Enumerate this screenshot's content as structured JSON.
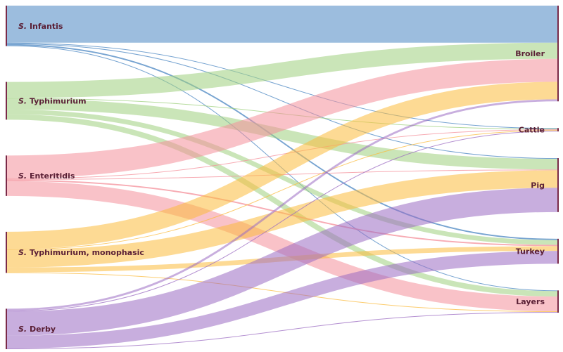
{
  "diagram": {
    "type": "sankey",
    "sources": [
      {
        "id": "infantis",
        "prefix": "S.",
        "label": "Infantis",
        "color": "#4a86c2"
      },
      {
        "id": "typhimurium",
        "prefix": "S.",
        "label": "Typhimurium",
        "color": "#9ed07d"
      },
      {
        "id": "enteritidis",
        "prefix": "S.",
        "label": "Enteritidis",
        "color": "#f48f9a"
      },
      {
        "id": "typh-mono",
        "prefix": "S.",
        "label": "Typhimurium, monophasic",
        "color": "#fbbb3d"
      },
      {
        "id": "derby",
        "prefix": "S.",
        "label": "Derby",
        "color": "#9b6bc2"
      }
    ],
    "targets": [
      {
        "id": "broiler",
        "label": "Broiler"
      },
      {
        "id": "cattle",
        "label": "Cattle"
      },
      {
        "id": "pig",
        "label": "Pig"
      },
      {
        "id": "turkey",
        "label": "Turkey"
      },
      {
        "id": "layers",
        "label": "Layers"
      }
    ],
    "flows": [
      {
        "source": "infantis",
        "target": "broiler",
        "value": 55
      },
      {
        "source": "infantis",
        "target": "cattle",
        "value": 1
      },
      {
        "source": "infantis",
        "target": "pig",
        "value": 1
      },
      {
        "source": "infantis",
        "target": "turkey",
        "value": 2
      },
      {
        "source": "infantis",
        "target": "layers",
        "value": 1
      },
      {
        "source": "typhimurium",
        "target": "broiler",
        "value": 24
      },
      {
        "source": "typhimurium",
        "target": "cattle",
        "value": 1
      },
      {
        "source": "typhimurium",
        "target": "pig",
        "value": 16
      },
      {
        "source": "typhimurium",
        "target": "turkey",
        "value": 7
      },
      {
        "source": "typhimurium",
        "target": "layers",
        "value": 8
      },
      {
        "source": "enteritidis",
        "target": "broiler",
        "value": 34
      },
      {
        "source": "enteritidis",
        "target": "cattle",
        "value": 1
      },
      {
        "source": "enteritidis",
        "target": "pig",
        "value": 1
      },
      {
        "source": "enteritidis",
        "target": "turkey",
        "value": 2
      },
      {
        "source": "enteritidis",
        "target": "layers",
        "value": 22
      },
      {
        "source": "typh-mono",
        "target": "broiler",
        "value": 26
      },
      {
        "source": "typh-mono",
        "target": "cattle",
        "value": 1
      },
      {
        "source": "typh-mono",
        "target": "pig",
        "value": 26
      },
      {
        "source": "typh-mono",
        "target": "turkey",
        "value": 7
      },
      {
        "source": "typh-mono",
        "target": "layers",
        "value": 1
      },
      {
        "source": "derby",
        "target": "broiler",
        "value": 3
      },
      {
        "source": "derby",
        "target": "cattle",
        "value": 1
      },
      {
        "source": "derby",
        "target": "pig",
        "value": 36
      },
      {
        "source": "derby",
        "target": "turkey",
        "value": 19
      },
      {
        "source": "derby",
        "target": "layers",
        "value": 1
      }
    ]
  },
  "colors": {
    "node_bar": "#7a2a48",
    "label_text": "#5a1f35"
  }
}
